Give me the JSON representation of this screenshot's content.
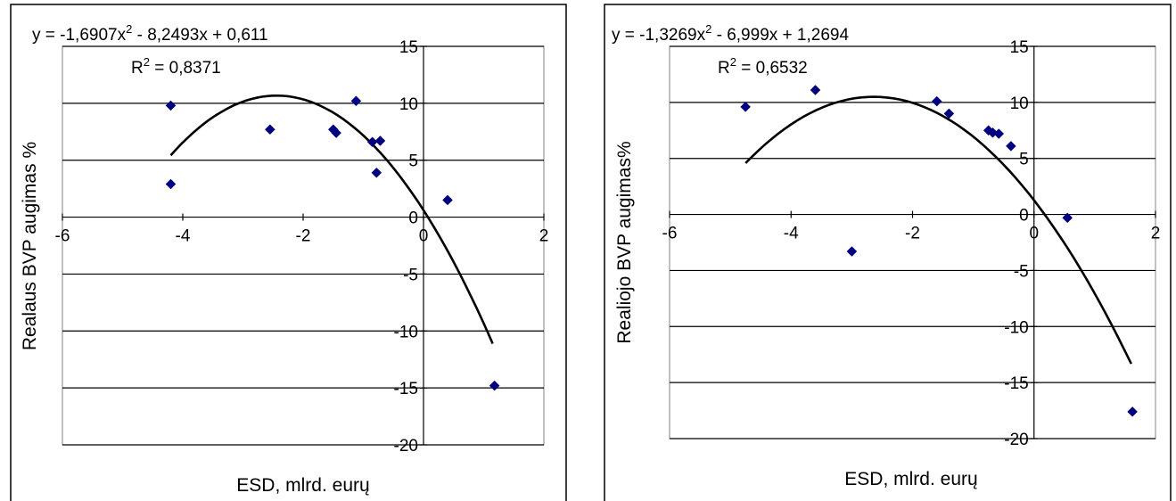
{
  "chart_data": [
    {
      "type": "scatter",
      "xlabel": "ESD, mlrd. eurų",
      "ylabel": "Realaus BVP augimas %",
      "xlim": [
        -6,
        2
      ],
      "ylim": [
        -20,
        15
      ],
      "x_ticks": [
        "-6",
        "-4",
        "-2",
        "0",
        "2"
      ],
      "y_ticks": [
        "-20",
        "-15",
        "-10",
        "-5",
        "0",
        "5",
        "10",
        "15"
      ],
      "grid": "horizontal",
      "equation": {
        "prefix": "y = -1,6907x",
        "sup": "2",
        "suffix": " - 8,2493x + 0,611"
      },
      "r2": {
        "prefix": "R",
        "sup": "2",
        "suffix": " = 0,8371"
      },
      "trend_coefficients": [
        -1.6907,
        -8.2493,
        0.611
      ],
      "trend_range": [
        -4.2,
        1.15
      ],
      "points": [
        {
          "x": -4.2,
          "y": 9.8
        },
        {
          "x": -4.2,
          "y": 2.9
        },
        {
          "x": -2.55,
          "y": 7.7
        },
        {
          "x": -1.5,
          "y": 7.7
        },
        {
          "x": -1.45,
          "y": 7.4
        },
        {
          "x": -1.12,
          "y": 10.2
        },
        {
          "x": -0.85,
          "y": 6.6
        },
        {
          "x": -0.72,
          "y": 6.7
        },
        {
          "x": -0.78,
          "y": 3.9
        },
        {
          "x": 0.4,
          "y": 1.5
        },
        {
          "x": 1.18,
          "y": -14.8
        }
      ],
      "colors": {
        "marker": "#000080",
        "trend": "#000000"
      }
    },
    {
      "type": "scatter",
      "xlabel": "ESD, mlrd. eurų",
      "ylabel": "Realiojo BVP augimas%",
      "xlim": [
        -6,
        2
      ],
      "ylim": [
        -20,
        15
      ],
      "x_ticks": [
        "-6",
        "-4",
        "-2",
        "0",
        "2"
      ],
      "y_ticks": [
        "-20",
        "-15",
        "-10",
        "-5",
        "0",
        "5",
        "10",
        "15"
      ],
      "grid": "horizontal",
      "equation": {
        "prefix": "y = -1,3269x",
        "sup": "2",
        "suffix": " - 6,999x + 1,2694"
      },
      "r2": {
        "prefix": "R",
        "sup": "2",
        "suffix": " = 0,6532"
      },
      "trend_coefficients": [
        -1.3269,
        -6.999,
        1.2694
      ],
      "trend_range": [
        -4.75,
        1.6
      ],
      "points": [
        {
          "x": -4.75,
          "y": 9.6
        },
        {
          "x": -3.6,
          "y": 11.1
        },
        {
          "x": -3.0,
          "y": -3.3
        },
        {
          "x": -1.6,
          "y": 10.1
        },
        {
          "x": -1.4,
          "y": 9.0
        },
        {
          "x": -0.75,
          "y": 7.5
        },
        {
          "x": -0.68,
          "y": 7.3
        },
        {
          "x": -0.58,
          "y": 7.2
        },
        {
          "x": -0.38,
          "y": 6.1
        },
        {
          "x": 0.55,
          "y": -0.3
        },
        {
          "x": 1.62,
          "y": -17.6
        }
      ],
      "colors": {
        "marker": "#000080",
        "trend": "#000000"
      }
    }
  ]
}
